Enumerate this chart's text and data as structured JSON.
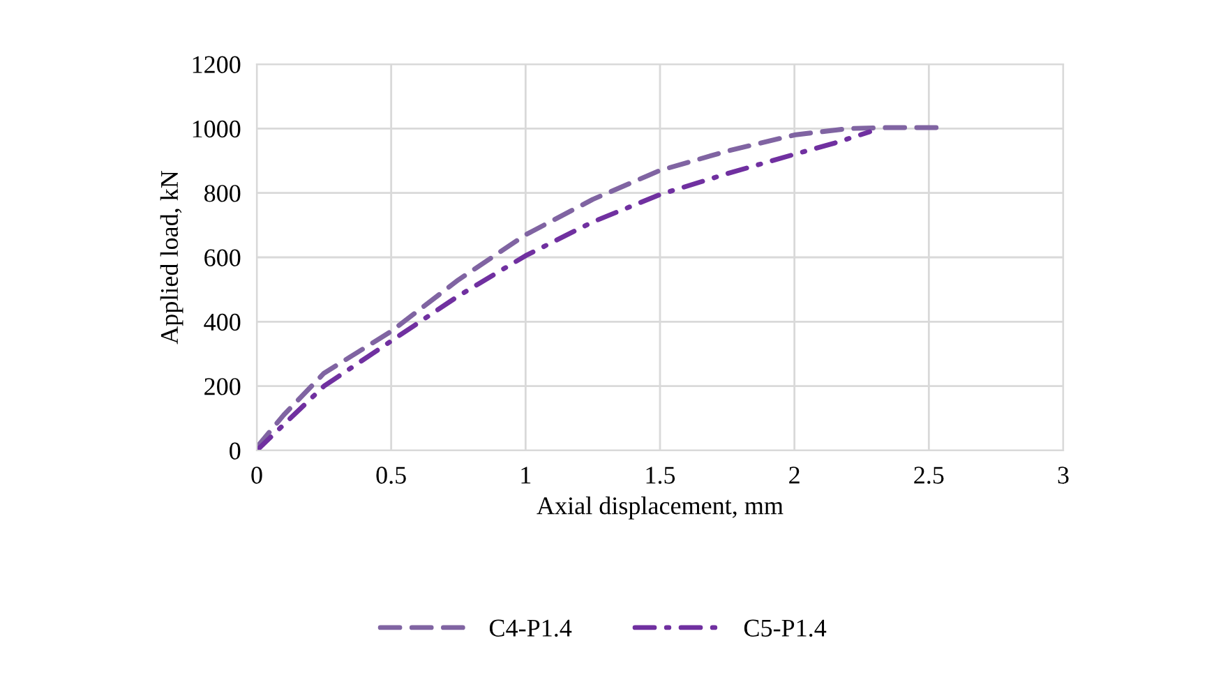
{
  "chart_data": {
    "type": "line",
    "xlabel": "Axial displacement, mm",
    "ylabel": "Applied load, kN",
    "xlim": [
      0,
      3
    ],
    "xticks": [
      0,
      0.5,
      1,
      1.5,
      2,
      2.5,
      3
    ],
    "ylim": [
      0,
      1200
    ],
    "yticks": [
      0,
      200,
      400,
      600,
      800,
      1000,
      1200
    ],
    "grid": true,
    "legend": "bottom",
    "marker": "none",
    "series": [
      {
        "name": "C4-P1.4",
        "color": "#8064a2",
        "line_style": "dashed",
        "x": [
          0,
          0.1,
          0.25,
          0.5,
          0.75,
          1.0,
          1.25,
          1.5,
          1.75,
          2.0,
          2.2,
          2.35,
          2.53
        ],
        "values": [
          10,
          110,
          240,
          370,
          530,
          670,
          780,
          870,
          930,
          980,
          1000,
          1003,
          1003
        ]
      },
      {
        "name": "C5-P1.4",
        "color": "#7030a0",
        "line_style": "dashdot",
        "x": [
          0,
          0.1,
          0.25,
          0.5,
          0.75,
          1.0,
          1.25,
          1.5,
          1.75,
          2.0,
          2.15,
          2.28
        ],
        "values": [
          0,
          80,
          200,
          340,
          480,
          605,
          710,
          795,
          860,
          920,
          955,
          990
        ]
      }
    ]
  }
}
